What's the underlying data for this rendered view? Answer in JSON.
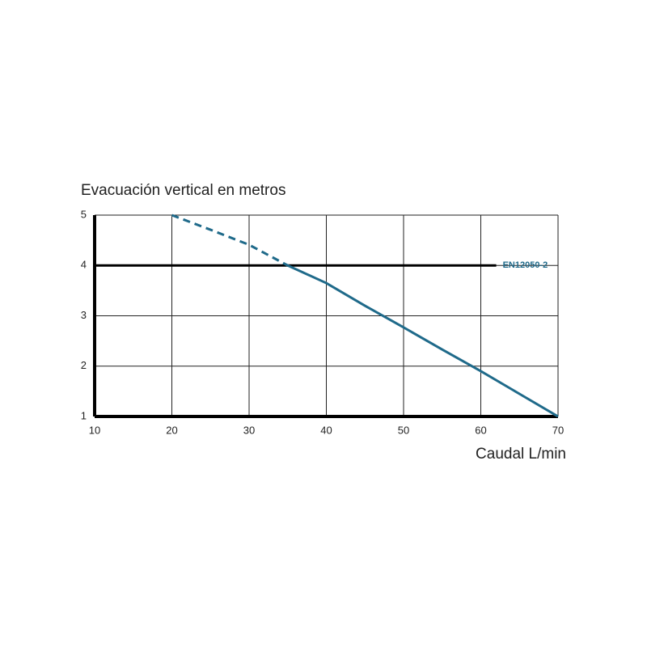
{
  "chart_data": {
    "type": "line",
    "y_label": "Evacuación vertical en metros",
    "x_label": "Caudal L/min",
    "x": [
      20,
      25,
      30,
      35,
      40,
      45,
      50,
      55,
      60,
      65,
      70
    ],
    "series": [
      {
        "color": "#1f6a8a",
        "dash": true,
        "values": [
          5,
          4.71,
          4.41,
          4,
          null,
          null,
          null,
          null,
          null,
          null,
          null
        ]
      },
      {
        "color": "#1f6a8a",
        "dash": false,
        "values": [
          null,
          null,
          null,
          4,
          3.65,
          3.2,
          2.77,
          2.33,
          1.9,
          1.45,
          1
        ]
      }
    ],
    "reference_line": {
      "label": "EN12050-2",
      "y": 4,
      "x": [
        10,
        62
      ],
      "color": "#000000",
      "label_color": "#1f6a8a"
    },
    "xlim": [
      10,
      70
    ],
    "xticks": [
      10,
      20,
      30,
      40,
      50,
      60,
      70
    ],
    "ylim": [
      1,
      5
    ],
    "yticks": [
      1,
      2,
      3,
      4,
      5
    ],
    "grid": true
  }
}
